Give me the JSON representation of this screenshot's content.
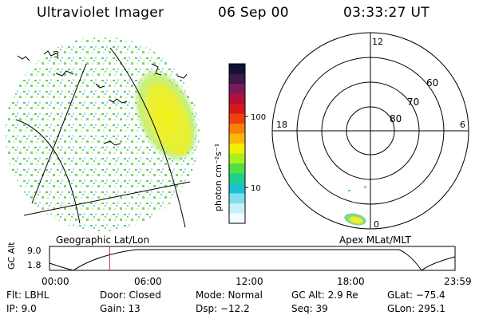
{
  "header": {
    "title": "Ultraviolet Imager",
    "date": "06 Sep 00",
    "time": "03:33:27 UT"
  },
  "colorbar": {
    "unit_label": "photon cm⁻²s⁻¹",
    "tick_labels": [
      "100",
      "10"
    ],
    "colors": [
      "#111133",
      "#3a1a4a",
      "#7a1a5a",
      "#b0103a",
      "#d8181a",
      "#f04010",
      "#f88008",
      "#f8b808",
      "#f0f000",
      "#a8f020",
      "#50e040",
      "#20d090",
      "#20c0d0",
      "#80e0f0",
      "#c8f0f8",
      "#f4fcff"
    ]
  },
  "geographic_panel": {
    "label": "Geographic Lat/Lon",
    "partial_label": "3"
  },
  "polar_panel": {
    "label": "Apex MLat/MLT",
    "mlt_labels": {
      "top": "12",
      "left": "18",
      "right": "6",
      "bottom": "0"
    },
    "lat_labels": [
      "60",
      "70",
      "80"
    ]
  },
  "timeline": {
    "ylabel": "GC Alt",
    "y_ticks": [
      "9.0",
      "1.8"
    ],
    "x_ticks": [
      "00:00",
      "06:00",
      "12:00",
      "18:00",
      "23:59"
    ],
    "marker_hour": 3.56
  },
  "info": {
    "flt": "Flt: LBHL",
    "ip": "IP:  9.0",
    "door": "Door: Closed",
    "gain": "Gain: 13",
    "mode": "Mode: Normal",
    "dsp": "Dsp:  −12.2",
    "gcalt": "GC Alt: 2.9 Re",
    "seq": "Seq: 39",
    "glat": "GLat: −75.4",
    "glon": "GLon: 295.1"
  }
}
